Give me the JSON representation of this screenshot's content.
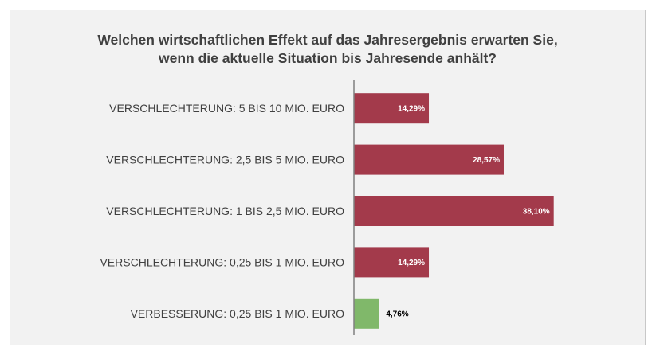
{
  "chart_data": {
    "type": "bar",
    "orientation": "horizontal",
    "title_lines": [
      "Welchen wirtschaftlichen Effekt auf das Jahresergebnis erwarten Sie,",
      "wenn die aktuelle Situation bis Jahresende anhält?"
    ],
    "categories": [
      "VERSCHLECHTERUNG: 5 BIS 10 MIO. EURO",
      "VERSCHLECHTERUNG: 2,5 BIS 5 MIO. EURO",
      "VERSCHLECHTERUNG: 1 BIS 2,5 MIO. EURO",
      "VERSCHLECHTERUNG: 0,25 BIS 1 MIO. EURO",
      "VERBESSERUNG:  0,25 BIS 1 MIO. EURO"
    ],
    "values": [
      14.29,
      28.57,
      38.1,
      14.29,
      4.76
    ],
    "value_labels": [
      "14,29%",
      "28,57%",
      "38,10%",
      "14,29%",
      "4,76%"
    ],
    "bar_colors": [
      "#a33a4b",
      "#a33a4b",
      "#a33a4b",
      "#a33a4b",
      "#80b86a"
    ],
    "label_colors": [
      "#ffffff",
      "#ffffff",
      "#ffffff",
      "#ffffff",
      "#000000"
    ],
    "label_position": [
      "inside-end",
      "inside-end",
      "inside-end",
      "inside-end",
      "outside-end"
    ],
    "xlim": [
      0,
      50
    ],
    "grid": false,
    "legend": "none"
  }
}
